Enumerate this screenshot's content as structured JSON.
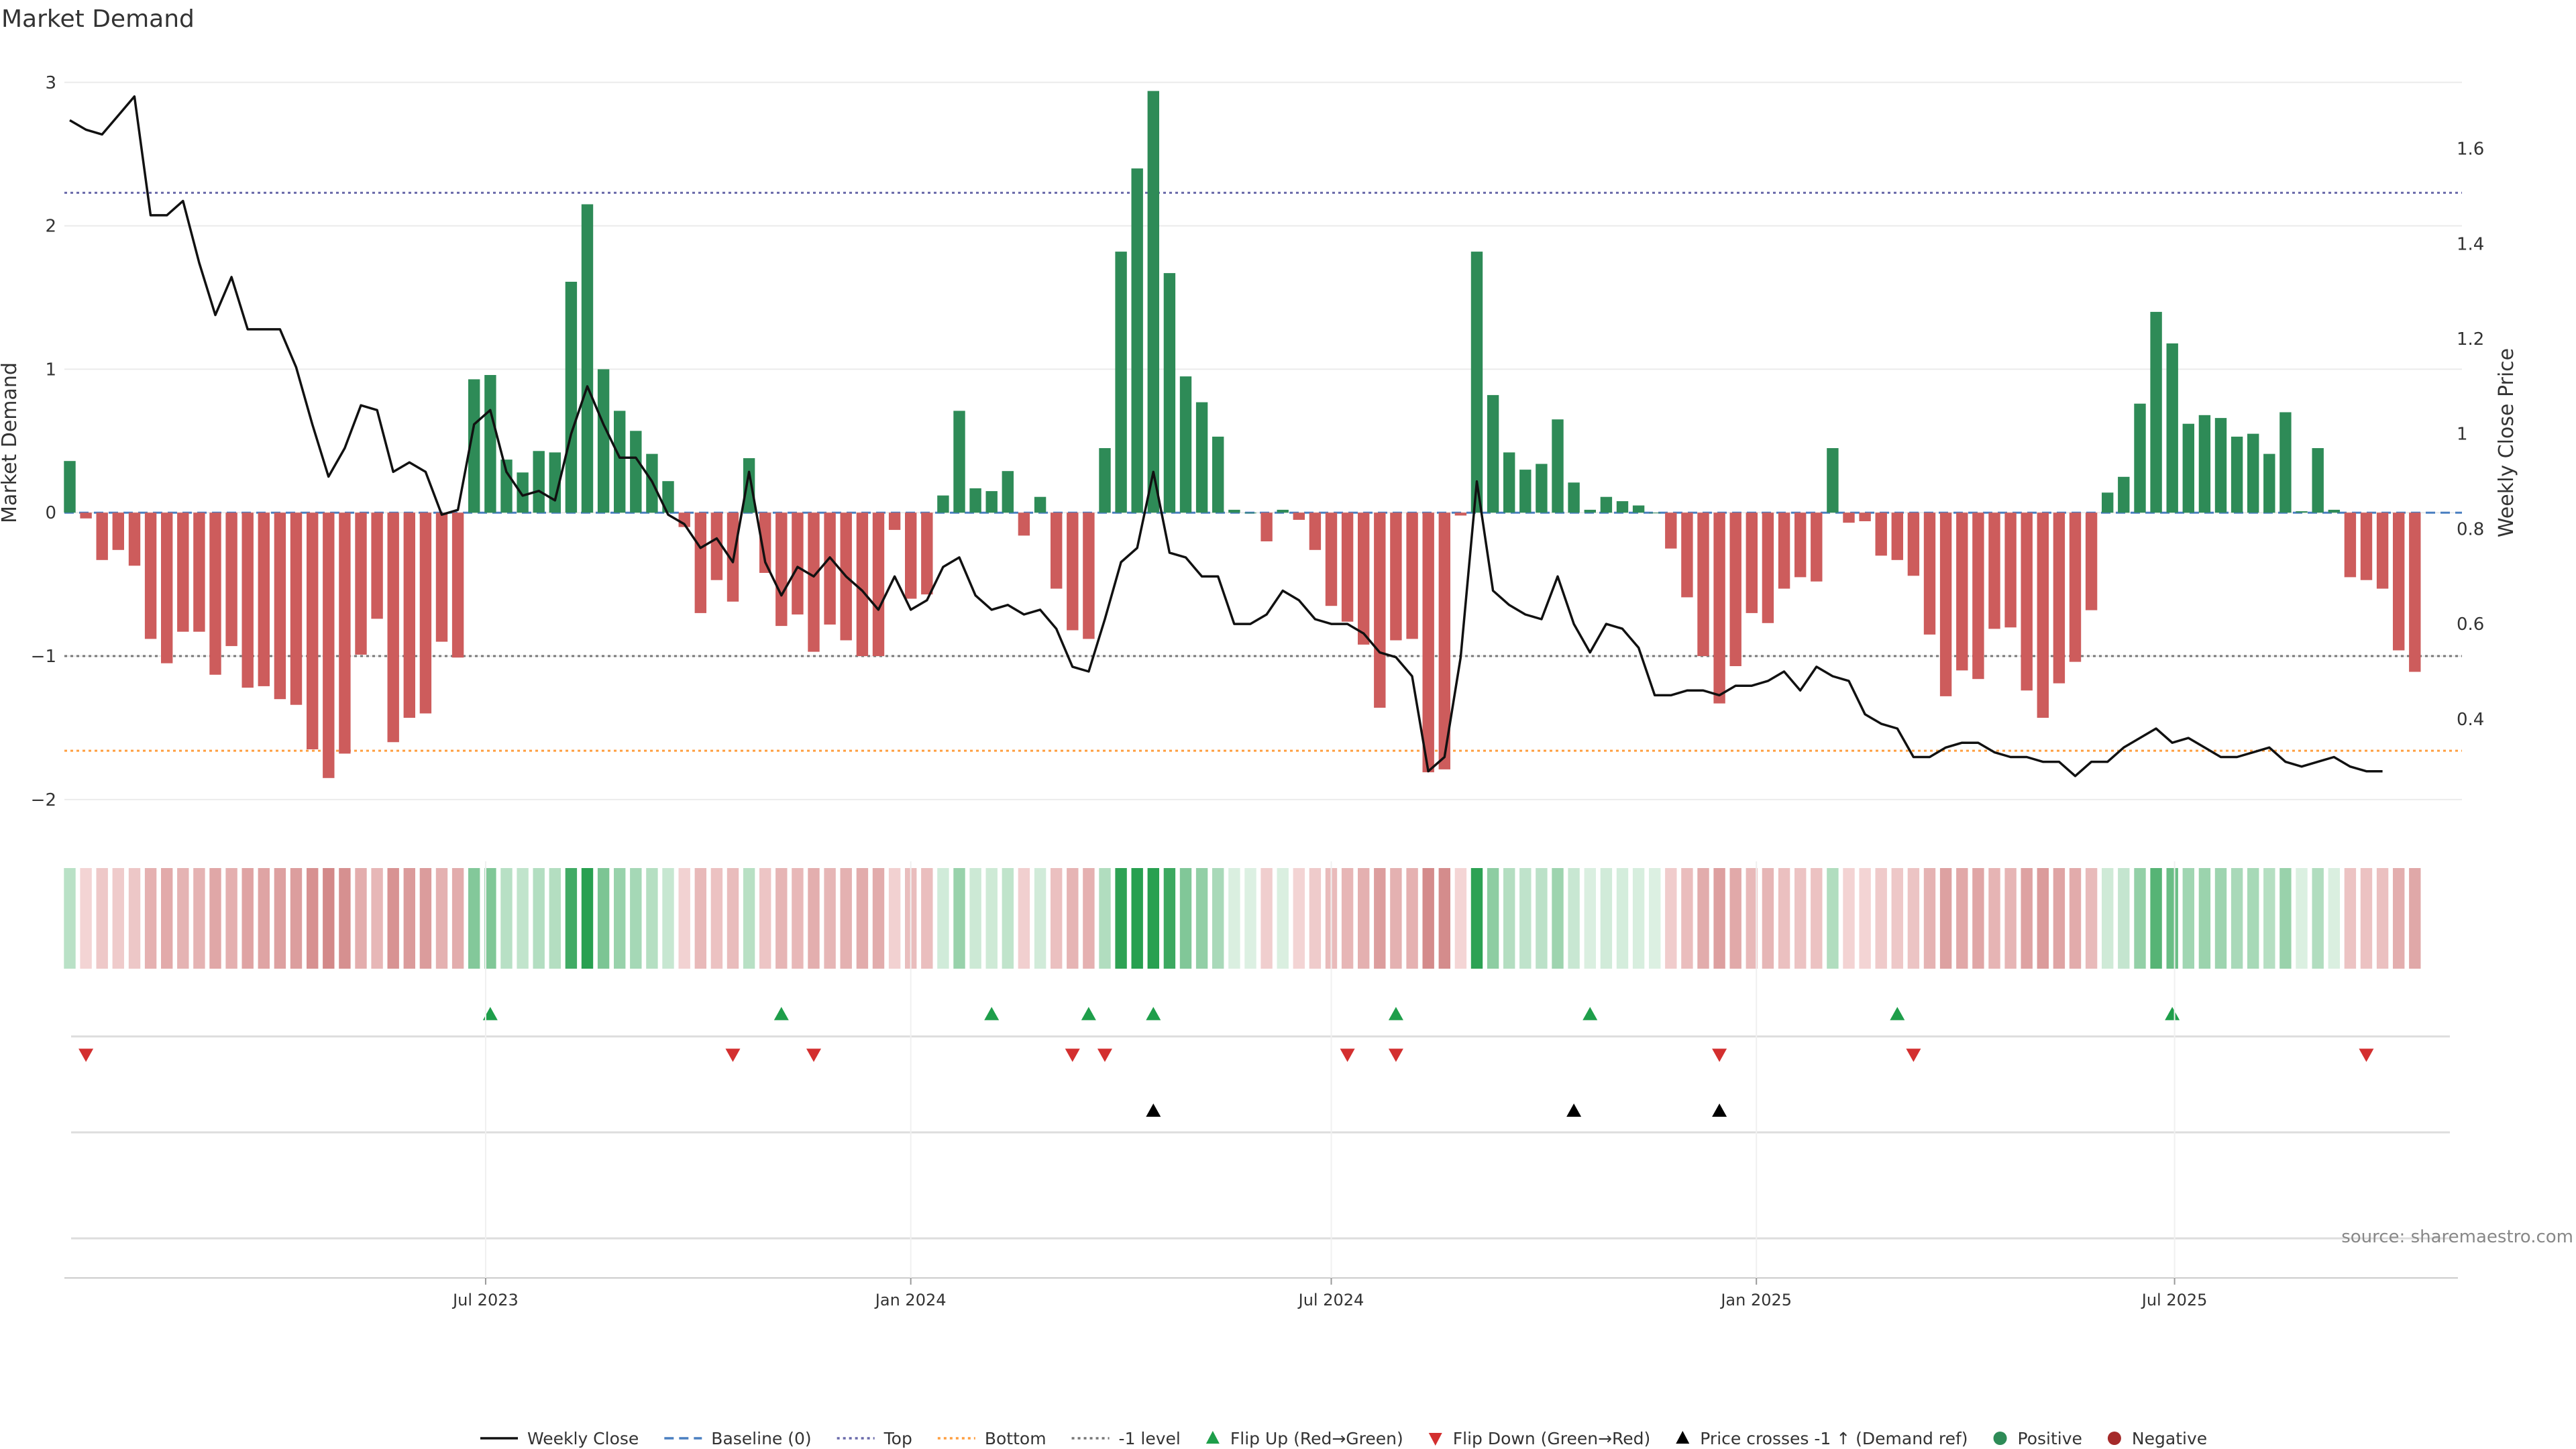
{
  "title": "Market Demand",
  "source": "source: sharemaestro.com",
  "colors": {
    "positive": "#2e8b57",
    "negative": "#cd5c5c",
    "price": "#111111",
    "baseline": "#4a7fc1",
    "top": "#6a6aaa",
    "bottom": "#ff9f40",
    "minus1": "#777777",
    "flip_up": "#1e9e4a",
    "flip_down": "#d32f2f",
    "cross": "#000000",
    "grid": "#ebebeb"
  },
  "chart_data": {
    "type": "bar",
    "title": "Market Demand",
    "y_left_label": "Market Demand",
    "y_right_label": "Weekly Close Price",
    "y_left_range": [
      -2.3,
      3.2
    ],
    "y_left_ticks": [
      "3",
      "2",
      "1",
      "0",
      "−1",
      "−2"
    ],
    "y_left_tick_values": [
      3,
      2,
      1,
      0,
      -1,
      -2
    ],
    "y_right_range": [
      0.14,
      1.8
    ],
    "y_right_ticks": [
      "1.6",
      "1.4",
      "1.2",
      "1",
      "0.8",
      "0.6",
      "0.4"
    ],
    "y_right_tick_values": [
      1.6,
      1.4,
      1.2,
      1.0,
      0.8,
      0.6,
      0.4
    ],
    "x_range": [
      "2023-01-02",
      "2025-10-27"
    ],
    "x_ticks": [
      {
        "date": "2023-07-01",
        "label": "Jul 2023"
      },
      {
        "date": "2024-01-01",
        "label": "Jan 2024"
      },
      {
        "date": "2024-07-01",
        "label": "Jul 2024"
      },
      {
        "date": "2025-01-01",
        "label": "Jan 2025"
      },
      {
        "date": "2025-07-01",
        "label": "Jul 2025"
      }
    ],
    "reference_lines": [
      {
        "name": "Baseline (0)",
        "value": 0
      },
      {
        "name": "Top",
        "value": 2.23
      },
      {
        "name": "Bottom",
        "value": -1.66
      },
      {
        "name": "-1 level",
        "value": -1
      }
    ],
    "dates": [
      "2023-01-02",
      "2023-01-09",
      "2023-01-16",
      "2023-01-23",
      "2023-01-30",
      "2023-02-06",
      "2023-02-13",
      "2023-02-20",
      "2023-02-27",
      "2023-03-06",
      "2023-03-13",
      "2023-03-20",
      "2023-03-27",
      "2023-04-03",
      "2023-04-10",
      "2023-04-17",
      "2023-04-24",
      "2023-05-01",
      "2023-05-08",
      "2023-05-15",
      "2023-05-22",
      "2023-05-29",
      "2023-06-05",
      "2023-06-12",
      "2023-06-19",
      "2023-06-26",
      "2023-07-03",
      "2023-07-10",
      "2023-07-17",
      "2023-07-24",
      "2023-07-31",
      "2023-08-07",
      "2023-08-14",
      "2023-08-21",
      "2023-08-28",
      "2023-09-04",
      "2023-09-11",
      "2023-09-18",
      "2023-09-25",
      "2023-10-02",
      "2023-10-09",
      "2023-10-16",
      "2023-10-23",
      "2023-10-30",
      "2023-11-06",
      "2023-11-13",
      "2023-11-20",
      "2023-11-27",
      "2023-12-04",
      "2023-12-11",
      "2023-12-18",
      "2023-12-25",
      "2024-01-01",
      "2024-01-08",
      "2024-01-15",
      "2024-01-22",
      "2024-01-29",
      "2024-02-05",
      "2024-02-12",
      "2024-02-19",
      "2024-02-26",
      "2024-03-04",
      "2024-03-11",
      "2024-03-18",
      "2024-03-25",
      "2024-04-01",
      "2024-04-08",
      "2024-04-15",
      "2024-04-22",
      "2024-04-29",
      "2024-05-06",
      "2024-05-13",
      "2024-05-20",
      "2024-05-27",
      "2024-06-03",
      "2024-06-10",
      "2024-06-17",
      "2024-06-24",
      "2024-07-01",
      "2024-07-08",
      "2024-07-15",
      "2024-07-22",
      "2024-07-29",
      "2024-08-05",
      "2024-08-12",
      "2024-08-19",
      "2024-08-26",
      "2024-09-02",
      "2024-09-09",
      "2024-09-16",
      "2024-09-23",
      "2024-09-30",
      "2024-10-07",
      "2024-10-14",
      "2024-10-21",
      "2024-10-28",
      "2024-11-04",
      "2024-11-11",
      "2024-11-18",
      "2024-11-25",
      "2024-12-02",
      "2024-12-09",
      "2024-12-16",
      "2024-12-23",
      "2024-12-30",
      "2025-01-06",
      "2025-01-13",
      "2025-01-20",
      "2025-01-27",
      "2025-02-03",
      "2025-02-10",
      "2025-02-17",
      "2025-02-24",
      "2025-03-03",
      "2025-03-10",
      "2025-03-17",
      "2025-03-24",
      "2025-03-31",
      "2025-04-07",
      "2025-04-14",
      "2025-04-21",
      "2025-04-28",
      "2025-05-05",
      "2025-05-12",
      "2025-05-19",
      "2025-05-26",
      "2025-06-02",
      "2025-06-09",
      "2025-06-16",
      "2025-06-23",
      "2025-06-30",
      "2025-07-07",
      "2025-07-14",
      "2025-07-21",
      "2025-07-28",
      "2025-08-04",
      "2025-08-11",
      "2025-08-18",
      "2025-08-25",
      "2025-09-01",
      "2025-09-08",
      "2025-09-15",
      "2025-09-22",
      "2025-09-29",
      "2025-10-06",
      "2025-10-13",
      "2025-10-20",
      "2025-10-27"
    ],
    "demand": [
      0.36,
      -0.04,
      -0.33,
      -0.26,
      -0.37,
      -0.88,
      -1.05,
      -0.83,
      -0.83,
      -1.13,
      -0.93,
      -1.22,
      -1.21,
      -1.3,
      -1.34,
      -1.65,
      -1.85,
      -1.68,
      -0.99,
      -0.74,
      -1.6,
      -1.43,
      -1.4,
      -0.9,
      -1.01,
      0.93,
      0.96,
      0.37,
      0.28,
      0.43,
      0.42,
      1.61,
      2.15,
      1.0,
      0.71,
      0.57,
      0.41,
      0.22,
      -0.1,
      -0.7,
      -0.47,
      -0.62,
      0.38,
      -0.42,
      -0.79,
      -0.71,
      -0.97,
      -0.78,
      -0.89,
      -1.0,
      -1.0,
      -0.12,
      -0.6,
      -0.57,
      0.12,
      0.71,
      0.17,
      0.15,
      0.29,
      -0.16,
      0.11,
      -0.53,
      -0.82,
      -0.88,
      0.45,
      1.82,
      2.4,
      2.94,
      1.67,
      0.95,
      0.77,
      0.53,
      0.02,
      0.0,
      -0.2,
      0.02,
      -0.05,
      -0.26,
      -0.65,
      -0.76,
      -0.92,
      -1.36,
      -0.89,
      -0.88,
      -1.81,
      -1.79,
      -0.02,
      1.82,
      0.82,
      0.42,
      0.3,
      0.34,
      0.65,
      0.21,
      0.02,
      0.11,
      0.08,
      0.05,
      0.0,
      -0.25,
      -0.59,
      -1.0,
      -1.33,
      -1.07,
      -0.7,
      -0.77,
      -0.53,
      -0.45,
      -0.48,
      0.45,
      -0.07,
      -0.06,
      -0.3,
      -0.33,
      -0.44,
      -0.85,
      -1.28,
      -1.1,
      -1.16,
      -0.81,
      -0.8,
      -1.24,
      -1.43,
      -1.19,
      -1.04,
      -0.68,
      0.14,
      0.25,
      0.76,
      1.4,
      1.18,
      0.62,
      0.68,
      0.66,
      0.53,
      0.55,
      0.41,
      0.7,
      0.01,
      0.45,
      0.02,
      -0.45,
      -0.47,
      -0.53,
      -0.96,
      -1.11
    ],
    "price": [
      1.66,
      1.64,
      1.63,
      1.67,
      1.71,
      1.46,
      1.46,
      1.49,
      1.36,
      1.25,
      1.33,
      1.22,
      1.22,
      1.22,
      1.14,
      1.02,
      0.91,
      0.97,
      1.06,
      1.05,
      0.92,
      0.94,
      0.92,
      0.83,
      0.84,
      1.02,
      1.05,
      0.92,
      0.87,
      0.88,
      0.86,
      1.0,
      1.1,
      1.02,
      0.95,
      0.95,
      0.9,
      0.83,
      0.81,
      0.76,
      0.78,
      0.73,
      0.92,
      0.73,
      0.66,
      0.72,
      0.7,
      0.74,
      0.7,
      0.67,
      0.63,
      0.7,
      0.63,
      0.65,
      0.72,
      0.74,
      0.66,
      0.63,
      0.64,
      0.62,
      0.63,
      0.59,
      0.51,
      0.5,
      0.61,
      0.73,
      0.76,
      0.92,
      0.75,
      0.74,
      0.7,
      0.7,
      0.6,
      0.6,
      0.62,
      0.67,
      0.65,
      0.61,
      0.6,
      0.6,
      0.58,
      0.54,
      0.53,
      0.49,
      0.29,
      0.32,
      0.53,
      0.9,
      0.67,
      0.64,
      0.62,
      0.61,
      0.7,
      0.6,
      0.54,
      0.6,
      0.59,
      0.55,
      0.45,
      0.45,
      0.46,
      0.46,
      0.45,
      0.47,
      0.47,
      0.48,
      0.5,
      0.46,
      0.51,
      0.49,
      0.48,
      0.41,
      0.39,
      0.38,
      0.32,
      0.32,
      0.34,
      0.35,
      0.35,
      0.33,
      0.32,
      0.32,
      0.31,
      0.31,
      0.28,
      0.31,
      0.31,
      0.34,
      0.36,
      0.38,
      0.35,
      0.36,
      0.34,
      0.32,
      0.32,
      0.33,
      0.34,
      0.31,
      0.3,
      0.31,
      0.32,
      0.3,
      0.29,
      0.29
    ],
    "flip_up": [
      "2023-07-03",
      "2023-11-06",
      "2024-02-05",
      "2024-03-18",
      "2024-04-15",
      "2024-07-29",
      "2024-10-21",
      "2025-03-03",
      "2025-06-30"
    ],
    "flip_down": [
      "2023-01-09",
      "2023-10-16",
      "2023-11-20",
      "2024-03-11",
      "2024-03-25",
      "2024-07-08",
      "2024-07-29",
      "2024-12-16",
      "2025-03-10",
      "2025-09-22"
    ],
    "price_crosses": [
      "2024-04-15",
      "2024-10-14",
      "2024-12-16"
    ]
  },
  "legend": [
    {
      "label": "Weekly Close",
      "icon": "line-solid-icon",
      "color": "#111111"
    },
    {
      "label": "Baseline (0)",
      "icon": "line-dashed-icon",
      "color": "#4a7fc1"
    },
    {
      "label": "Top",
      "icon": "line-dotted-icon",
      "color": "#6a6aaa"
    },
    {
      "label": "Bottom",
      "icon": "line-dotted-icon",
      "color": "#ff9f40"
    },
    {
      "label": "-1 level",
      "icon": "line-dotted-icon",
      "color": "#777777"
    },
    {
      "label": "Flip Up (Red→Green)",
      "icon": "triangle-up-icon",
      "color": "#1e9e4a"
    },
    {
      "label": "Flip Down (Green→Red)",
      "icon": "triangle-down-icon",
      "color": "#d32f2f"
    },
    {
      "label": "Price crosses -1 ↑ (Demand ref)",
      "icon": "triangle-up-icon",
      "color": "#000000"
    },
    {
      "label": "Positive",
      "icon": "circle-icon",
      "color": "#2e8b57"
    },
    {
      "label": "Negative",
      "icon": "circle-icon",
      "color": "#a52a2a"
    }
  ]
}
